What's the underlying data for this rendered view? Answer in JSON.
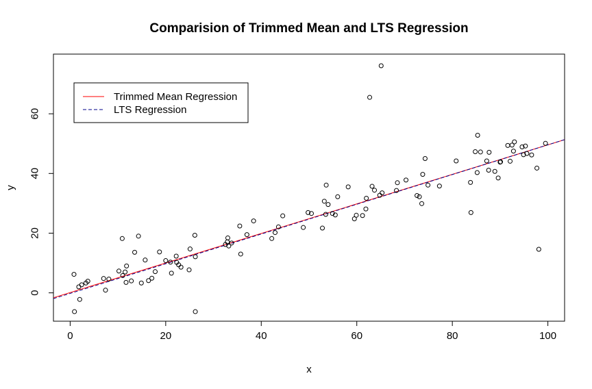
{
  "chart_data": {
    "type": "scatter",
    "title": "Comparision of Trimmed Mean and LTS Regression",
    "xlabel": "x",
    "ylabel": "y",
    "xlim": [
      -3.5,
      103.5
    ],
    "ylim": [
      -9.5,
      80
    ],
    "x_ticks": [
      0,
      20,
      40,
      60,
      80,
      100
    ],
    "y_ticks": [
      0,
      20,
      40,
      60
    ],
    "grid": false,
    "legend_position": "top-left",
    "points": [
      [
        0.8,
        6.2
      ],
      [
        0.9,
        -6.3
      ],
      [
        2.0,
        -2.2
      ],
      [
        1.8,
        2.0
      ],
      [
        2.4,
        2.7
      ],
      [
        3.3,
        3.3
      ],
      [
        3.7,
        3.9
      ],
      [
        7.0,
        4.8
      ],
      [
        7.4,
        0.9
      ],
      [
        8.1,
        4.6
      ],
      [
        10.2,
        7.3
      ],
      [
        10.9,
        18.2
      ],
      [
        11.0,
        5.8
      ],
      [
        11.5,
        7.0
      ],
      [
        11.7,
        3.5
      ],
      [
        11.8,
        9.0
      ],
      [
        12.8,
        4.0
      ],
      [
        13.5,
        13.6
      ],
      [
        14.3,
        19.0
      ],
      [
        14.9,
        3.3
      ],
      [
        15.7,
        11.0
      ],
      [
        16.4,
        4.1
      ],
      [
        17.1,
        4.9
      ],
      [
        17.8,
        7.1
      ],
      [
        18.7,
        13.7
      ],
      [
        20.0,
        10.8
      ],
      [
        21.0,
        10.3
      ],
      [
        21.2,
        6.6
      ],
      [
        22.2,
        12.3
      ],
      [
        22.7,
        9.4
      ],
      [
        22.3,
        10.2
      ],
      [
        23.2,
        8.6
      ],
      [
        24.9,
        7.7
      ],
      [
        25.1,
        14.7
      ],
      [
        26.1,
        19.3
      ],
      [
        26.2,
        12.1
      ],
      [
        26.2,
        -6.3
      ],
      [
        32.9,
        17.1
      ],
      [
        32.5,
        16.2
      ],
      [
        33.0,
        18.4
      ],
      [
        33.2,
        15.7
      ],
      [
        33.8,
        16.7
      ],
      [
        35.5,
        22.4
      ],
      [
        35.7,
        13.0
      ],
      [
        37.0,
        19.5
      ],
      [
        38.4,
        24.1
      ],
      [
        42.2,
        18.2
      ],
      [
        42.9,
        20.2
      ],
      [
        43.6,
        22.1
      ],
      [
        44.5,
        25.8
      ],
      [
        48.8,
        21.9
      ],
      [
        49.8,
        26.9
      ],
      [
        50.5,
        26.6
      ],
      [
        52.8,
        21.7
      ],
      [
        53.2,
        30.7
      ],
      [
        53.6,
        36.1
      ],
      [
        53.5,
        26.3
      ],
      [
        54.0,
        29.6
      ],
      [
        54.9,
        26.6
      ],
      [
        55.5,
        26.1
      ],
      [
        56.0,
        32.2
      ],
      [
        58.2,
        35.5
      ],
      [
        59.5,
        24.8
      ],
      [
        59.9,
        26.0
      ],
      [
        61.2,
        25.9
      ],
      [
        61.9,
        28.1
      ],
      [
        62.0,
        31.7
      ],
      [
        62.7,
        65.5
      ],
      [
        63.2,
        35.7
      ],
      [
        63.7,
        34.4
      ],
      [
        64.8,
        32.7
      ],
      [
        65.1,
        76.1
      ],
      [
        65.3,
        33.5
      ],
      [
        68.3,
        34.3
      ],
      [
        68.5,
        36.9
      ],
      [
        70.3,
        37.8
      ],
      [
        72.6,
        32.6
      ],
      [
        73.1,
        32.2
      ],
      [
        73.6,
        29.9
      ],
      [
        73.8,
        39.7
      ],
      [
        74.3,
        45.0
      ],
      [
        74.9,
        36.1
      ],
      [
        77.3,
        35.8
      ],
      [
        80.8,
        44.2
      ],
      [
        83.8,
        37.0
      ],
      [
        83.9,
        26.9
      ],
      [
        84.8,
        47.3
      ],
      [
        85.2,
        40.3
      ],
      [
        85.3,
        52.8
      ],
      [
        85.9,
        47.2
      ],
      [
        87.2,
        44.2
      ],
      [
        87.6,
        41.1
      ],
      [
        87.7,
        47.1
      ],
      [
        88.9,
        40.7
      ],
      [
        89.6,
        38.5
      ],
      [
        90.0,
        43.8
      ],
      [
        90.1,
        43.9
      ],
      [
        91.6,
        49.4
      ],
      [
        92.1,
        44.1
      ],
      [
        92.5,
        49.5
      ],
      [
        92.8,
        47.5
      ],
      [
        93.0,
        50.6
      ],
      [
        94.6,
        48.9
      ],
      [
        94.9,
        46.3
      ],
      [
        95.3,
        49.2
      ],
      [
        95.6,
        46.7
      ],
      [
        96.6,
        46.2
      ],
      [
        97.7,
        41.8
      ],
      [
        98.1,
        14.6
      ],
      [
        99.5,
        50.1
      ]
    ],
    "series": [
      {
        "name": "Trimmed Mean Regression",
        "color": "#ff0000",
        "linestyle": "solid",
        "intercept": 0.1,
        "slope": 0.495
      },
      {
        "name": "LTS Regression",
        "color": "#00008b",
        "linestyle": "dashed",
        "intercept": -0.2,
        "slope": 0.498
      }
    ]
  },
  "colors": {
    "points": "#000000",
    "trimmed": "#ff0000",
    "lts": "#00008b"
  }
}
